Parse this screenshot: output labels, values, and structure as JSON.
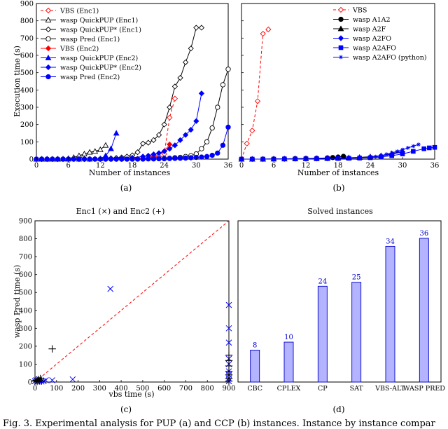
{
  "figure_caption": "Fig. 3.  Experimental analysis for PUP (a) and CCP (b) instances. Instance by instance compar",
  "chart_data": [
    {
      "id": "a",
      "type": "line",
      "label": "(a)",
      "title": "",
      "xlabel": "Number of instances",
      "ylabel": "Execution time (s)",
      "xlim": [
        0,
        36
      ],
      "ylim": [
        0,
        900
      ],
      "xticks": [
        0,
        6,
        12,
        18,
        24,
        30,
        36
      ],
      "yticks": [
        0,
        100,
        200,
        300,
        400,
        500,
        600,
        700,
        800,
        900
      ],
      "legend_position": "top-left",
      "series": [
        {
          "name": "VBS (Enc1)",
          "color": "#ff0000",
          "dash": "4,3",
          "marker": "diamond-open",
          "x": [
            0,
            1,
            2,
            3,
            4,
            5,
            6,
            7,
            8,
            9,
            10,
            11,
            12,
            13,
            14,
            15,
            16,
            17,
            18,
            19,
            20,
            21,
            22,
            23,
            24,
            25,
            26
          ],
          "y": [
            0,
            0,
            0,
            0,
            0,
            0,
            0,
            0,
            0,
            0,
            0,
            0,
            0,
            0,
            0,
            0,
            0,
            1,
            1,
            2,
            3,
            5,
            8,
            14,
            30,
            240,
            350
          ]
        },
        {
          "name": "wasp QuickPUP (Enc1)",
          "color": "#000000",
          "dash": "",
          "marker": "triangle-open",
          "x": [
            0,
            1,
            2,
            3,
            4,
            5,
            6,
            7,
            8,
            9,
            10,
            11,
            12,
            13
          ],
          "y": [
            0,
            0,
            0,
            0,
            0,
            1,
            4,
            10,
            20,
            30,
            40,
            45,
            55,
            80
          ]
        },
        {
          "name": "wasp QuickPUP* (Enc1)",
          "color": "#000000",
          "dash": "",
          "marker": "diamond-open",
          "x": [
            0,
            1,
            2,
            3,
            4,
            5,
            6,
            7,
            8,
            9,
            10,
            11,
            12,
            13,
            14,
            15,
            16,
            17,
            18,
            19,
            20,
            21,
            22,
            23,
            24,
            25,
            26,
            27,
            28,
            29,
            30,
            31
          ],
          "y": [
            0,
            0,
            0,
            0,
            0,
            0,
            0,
            0,
            0,
            0,
            1,
            1,
            2,
            3,
            5,
            7,
            10,
            15,
            22,
            40,
            90,
            95,
            110,
            140,
            200,
            300,
            420,
            470,
            560,
            640,
            760,
            760
          ]
        },
        {
          "name": "wasp Pred (Enc1)",
          "color": "#000000",
          "dash": "",
          "marker": "circle-open",
          "x": [
            0,
            1,
            2,
            3,
            4,
            5,
            6,
            7,
            8,
            9,
            10,
            11,
            12,
            13,
            14,
            15,
            16,
            17,
            18,
            19,
            20,
            21,
            22,
            23,
            24,
            25,
            26,
            27,
            28,
            29,
            30,
            31,
            32,
            33,
            34,
            35,
            36
          ],
          "y": [
            0,
            0,
            0,
            0,
            0,
            0,
            0,
            0,
            0,
            0,
            0,
            0,
            0,
            0,
            0,
            0,
            0,
            0,
            0,
            1,
            1,
            2,
            2,
            3,
            4,
            5,
            8,
            10,
            15,
            20,
            30,
            60,
            100,
            180,
            300,
            430,
            520
          ]
        },
        {
          "name": "VBS (Enc2)",
          "color": "#ff0000",
          "dash": "",
          "marker": "diamond-filled",
          "x": [
            0,
            2,
            4,
            6,
            8,
            10,
            12,
            14,
            16,
            18,
            20,
            22,
            24,
            25
          ],
          "y": [
            0,
            0,
            0,
            0,
            0,
            0,
            0,
            0,
            1,
            2,
            5,
            15,
            45,
            85
          ]
        },
        {
          "name": "wasp QuickPUP (Enc2)",
          "color": "#0000ff",
          "dash": "",
          "marker": "triangle-filled",
          "x": [
            0,
            2,
            4,
            6,
            8,
            10,
            12,
            13,
            14,
            15
          ],
          "y": [
            0,
            0,
            0,
            0,
            0,
            0,
            3,
            20,
            60,
            150
          ]
        },
        {
          "name": "wasp QuickPUP* (Enc2)",
          "color": "#0000ff",
          "dash": "",
          "marker": "diamond-filled",
          "x": [
            0,
            2,
            4,
            6,
            8,
            10,
            12,
            14,
            16,
            18,
            20,
            21,
            22,
            23,
            24,
            25,
            26,
            27,
            28,
            29,
            30,
            31
          ],
          "y": [
            0,
            0,
            0,
            0,
            0,
            0,
            1,
            2,
            4,
            8,
            15,
            20,
            28,
            35,
            45,
            60,
            80,
            110,
            140,
            170,
            220,
            380
          ]
        },
        {
          "name": "wasp Pred (Enc2)",
          "color": "#0000ff",
          "dash": "",
          "marker": "circle-filled",
          "x": [
            0,
            1,
            2,
            3,
            4,
            5,
            6,
            7,
            8,
            9,
            10,
            11,
            12,
            13,
            14,
            15,
            16,
            17,
            18,
            19,
            20,
            21,
            22,
            23,
            24,
            25,
            26,
            27,
            28,
            29,
            30,
            31,
            32,
            33,
            34,
            35,
            36
          ],
          "y": [
            0,
            0,
            0,
            0,
            0,
            0,
            0,
            0,
            0,
            0,
            0,
            0,
            0,
            0,
            0,
            0,
            0,
            0,
            0,
            0,
            0,
            1,
            1,
            2,
            2,
            3,
            4,
            5,
            6,
            8,
            10,
            12,
            15,
            22,
            35,
            80,
            185
          ]
        }
      ]
    },
    {
      "id": "b",
      "type": "line",
      "label": "(b)",
      "title": "",
      "xlabel": "Number of instances",
      "ylabel": "",
      "xlim": [
        0,
        36
      ],
      "ylim": [
        0,
        900
      ],
      "xticks": [
        0,
        6,
        12,
        18,
        24,
        30,
        36
      ],
      "yticks": [
        0,
        100,
        200,
        300,
        400,
        500,
        600,
        700,
        800,
        900
      ],
      "show_y_ticklabels": false,
      "legend_position": "top-right",
      "series": [
        {
          "name": "VBS",
          "color": "#ff0000",
          "dash": "4,3",
          "marker": "diamond-open",
          "x": [
            0,
            1,
            2,
            3,
            4,
            5
          ],
          "y": [
            0,
            90,
            165,
            335,
            725,
            750
          ]
        },
        {
          "name": "wasp A1A2",
          "color": "#000000",
          "dash": "",
          "marker": "circle-filled",
          "x": [
            0,
            2,
            4,
            6,
            8,
            10,
            12,
            14,
            16,
            17,
            18,
            19
          ],
          "y": [
            0,
            0,
            0,
            1,
            2,
            3,
            4,
            5,
            7,
            9,
            12,
            16
          ]
        },
        {
          "name": "wasp A2F",
          "color": "#000000",
          "dash": "",
          "marker": "triangle-filled",
          "x": [
            0,
            2,
            4,
            6,
            8,
            10,
            12,
            14,
            16,
            18,
            20,
            22,
            24,
            26,
            28,
            30
          ],
          "y": [
            0,
            0,
            0,
            1,
            1,
            2,
            3,
            4,
            5,
            6,
            8,
            10,
            14,
            20,
            32,
            45
          ]
        },
        {
          "name": "wasp A2FO",
          "color": "#0000ff",
          "dash": "",
          "marker": "diamond-filled",
          "x": [
            0,
            2,
            4,
            6,
            8,
            10,
            12,
            14,
            16,
            18,
            20,
            22,
            24,
            26,
            28,
            30
          ],
          "y": [
            0,
            0,
            0,
            1,
            1,
            2,
            2,
            3,
            4,
            5,
            7,
            9,
            12,
            18,
            28,
            42
          ]
        },
        {
          "name": "wasp A2AFO",
          "color": "#0000ff",
          "dash": "",
          "marker": "square-filled",
          "x": [
            0,
            2,
            4,
            6,
            8,
            10,
            12,
            14,
            16,
            18,
            20,
            22,
            24,
            26,
            28,
            30,
            32,
            34,
            35,
            36
          ],
          "y": [
            0,
            0,
            0,
            0,
            1,
            1,
            2,
            2,
            3,
            4,
            5,
            6,
            8,
            12,
            20,
            30,
            45,
            60,
            65,
            68
          ]
        },
        {
          "name": "wasp A2AFO (python)",
          "color": "#0000ff",
          "dash": "",
          "marker": "star",
          "x": [
            0,
            2,
            4,
            6,
            8,
            10,
            12,
            14,
            16,
            18,
            20,
            22,
            24,
            25,
            26,
            27,
            28,
            29,
            30,
            31,
            32,
            33
          ],
          "y": [
            0,
            0,
            0,
            0,
            0,
            1,
            1,
            2,
            3,
            4,
            5,
            7,
            10,
            14,
            20,
            28,
            36,
            45,
            55,
            65,
            75,
            85
          ]
        }
      ]
    },
    {
      "id": "c",
      "type": "scatter",
      "label": "(c)",
      "title": "Enc1 (×) and Enc2 (+)",
      "xlabel": "vbs  time (s)",
      "ylabel": "wasp Pred time (s)",
      "xlim": [
        0,
        900
      ],
      "ylim": [
        0,
        900
      ],
      "xticks": [
        0,
        100,
        200,
        300,
        400,
        500,
        600,
        700,
        800,
        900
      ],
      "yticks": [
        0,
        100,
        200,
        300,
        400,
        500,
        600,
        700,
        800,
        900
      ],
      "diagonal": true,
      "series": [
        {
          "name": "Enc1",
          "color": "#0000ff",
          "marker": "x",
          "x": [
            0,
            5,
            10,
            15,
            20,
            30,
            40,
            50,
            80,
            175,
            350,
            900,
            900,
            900,
            900,
            900,
            900,
            900,
            900,
            900
          ],
          "y": [
            5,
            10,
            2,
            8,
            15,
            3,
            5,
            10,
            10,
            15,
            520,
            430,
            300,
            220,
            130,
            100,
            60,
            40,
            20,
            5
          ]
        },
        {
          "name": "Enc2",
          "color": "#000000",
          "marker": "+",
          "x": [
            0,
            5,
            10,
            15,
            20,
            25,
            30,
            80,
            900,
            900,
            900,
            900,
            900,
            900,
            900
          ],
          "y": [
            5,
            10,
            3,
            15,
            8,
            20,
            5,
            185,
            150,
            120,
            90,
            60,
            40,
            20,
            5
          ]
        }
      ]
    },
    {
      "id": "d",
      "type": "bar",
      "label": "(d)",
      "title": "Solved instances",
      "categories": [
        "CBC",
        "CPLEX",
        "CP",
        "SAT",
        "VBS-ALT",
        "WASP PRED"
      ],
      "values": [
        8,
        10,
        24,
        25,
        34,
        36
      ],
      "ylim": [
        0,
        36
      ],
      "color": "#b3b3ff",
      "edge_color": "#0000cc"
    }
  ]
}
